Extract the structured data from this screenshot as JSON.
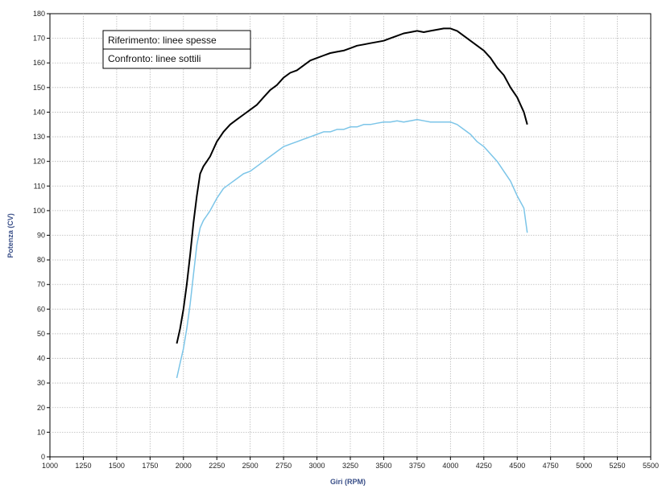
{
  "chart_data": {
    "type": "line",
    "title": "",
    "xlabel": "Giri (RPM)",
    "ylabel": "Potenza (CV)",
    "xlim": [
      1000,
      5500
    ],
    "ylim": [
      0,
      180
    ],
    "xticks": [
      1000,
      1250,
      1500,
      1750,
      2000,
      2250,
      2500,
      2750,
      3000,
      3250,
      3500,
      3750,
      4000,
      4250,
      4500,
      4750,
      5000,
      5250,
      5500
    ],
    "yticks": [
      0,
      10,
      20,
      30,
      40,
      50,
      60,
      70,
      80,
      90,
      100,
      110,
      120,
      130,
      140,
      150,
      160,
      170,
      180
    ],
    "grid": true,
    "legend_position": "top-left",
    "legend": [
      "Riferimento: linee spesse",
      "Confronto: linee sottili"
    ],
    "series": [
      {
        "color": "#000000",
        "x": [
          1950,
          1975,
          2000,
          2025,
          2050,
          2075,
          2100,
          2125,
          2150,
          2175,
          2200,
          2250,
          2300,
          2350,
          2400,
          2450,
          2500,
          2550,
          2600,
          2650,
          2700,
          2750,
          2800,
          2850,
          2900,
          2950,
          3000,
          3050,
          3100,
          3150,
          3200,
          3250,
          3300,
          3350,
          3400,
          3450,
          3500,
          3550,
          3600,
          3650,
          3700,
          3750,
          3800,
          3850,
          3900,
          3950,
          4000,
          4050,
          4100,
          4150,
          4200,
          4250,
          4300,
          4350,
          4400,
          4450,
          4500,
          4550,
          4575
        ],
        "y": [
          46,
          52,
          60,
          70,
          82,
          95,
          106,
          115,
          118,
          120,
          122,
          128,
          132,
          135,
          137,
          139,
          141,
          143,
          146,
          149,
          151,
          154,
          156,
          157,
          159,
          161,
          162,
          163,
          164,
          164.5,
          165,
          166,
          167,
          167.5,
          168,
          168.5,
          169,
          170,
          171,
          172,
          172.5,
          173,
          172.5,
          173,
          173.5,
          174,
          174,
          173,
          171,
          169,
          167,
          165,
          162,
          158,
          155,
          150,
          146,
          140,
          135
        ]
      },
      {
        "color": "#7cc5e8",
        "x": [
          1950,
          1975,
          2000,
          2025,
          2050,
          2075,
          2100,
          2125,
          2150,
          2175,
          2200,
          2250,
          2300,
          2350,
          2400,
          2450,
          2500,
          2550,
          2600,
          2650,
          2700,
          2750,
          2800,
          2850,
          2900,
          2950,
          3000,
          3050,
          3100,
          3150,
          3200,
          3250,
          3300,
          3350,
          3400,
          3450,
          3500,
          3550,
          3600,
          3650,
          3700,
          3750,
          3800,
          3850,
          3900,
          3950,
          4000,
          4050,
          4100,
          4150,
          4200,
          4250,
          4300,
          4350,
          4400,
          4450,
          4500,
          4550,
          4575
        ],
        "y": [
          32,
          38,
          44,
          52,
          62,
          74,
          86,
          93,
          96,
          98,
          100,
          105,
          109,
          111,
          113,
          115,
          116,
          118,
          120,
          122,
          124,
          126,
          127,
          128,
          129,
          130,
          131,
          132,
          132,
          133,
          133,
          134,
          134,
          135,
          135,
          135.5,
          136,
          136,
          136.5,
          136,
          136.5,
          137,
          136.5,
          136,
          136,
          136,
          136,
          135,
          133,
          131,
          128,
          126,
          123,
          120,
          116,
          112,
          106,
          101,
          91
        ]
      }
    ]
  }
}
